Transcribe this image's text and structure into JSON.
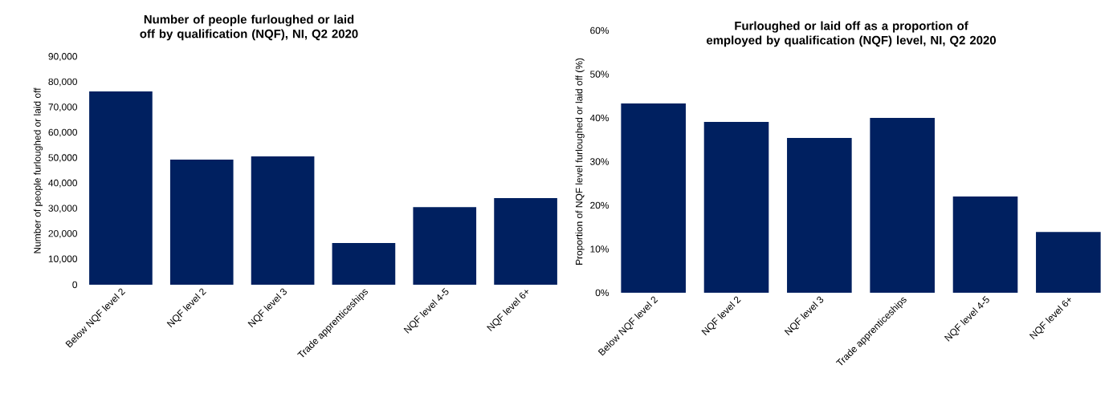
{
  "chart_data": [
    {
      "type": "bar",
      "title": "Number of people furloughed or laid off by qualification (NQF), NI, Q2 2020",
      "ylabel": "Number of people furloughed or laid off",
      "categories": [
        "Below NQF level 2",
        "NQF level 2",
        "NQF level 3",
        "Trade apprenticeships",
        "NQF level 4-5",
        "NQF level 6+"
      ],
      "values": [
        76400,
        49400,
        50700,
        16500,
        30700,
        34200
      ],
      "color": "#002060",
      "ylim": [
        0,
        90000
      ],
      "yticks": [
        0,
        {
          "value": 10000,
          "label": "10,000"
        },
        {
          "value": 20000,
          "label": "20,000"
        },
        {
          "value": 30000,
          "label": "30,000"
        },
        {
          "value": 40000,
          "label": "40,000"
        },
        {
          "value": 50000,
          "label": "50,000"
        },
        {
          "value": 60000,
          "label": "60,000"
        },
        {
          "value": 70000,
          "label": "70,000"
        },
        {
          "value": 80000,
          "label": "80,000"
        },
        {
          "value": 90000,
          "label": "90,000"
        }
      ]
    },
    {
      "type": "bar",
      "title": "Furloughed or laid off as a proportion of employed by qualification (NQF) level, NI, Q2 2020",
      "ylabel": "Proportion of NQF level furloughed or laid off (%)",
      "categories": [
        "Below NQF level 2",
        "NQF level 2",
        "NQF level 3",
        "Trade apprenticeships",
        "NQF level 4-5",
        "NQF level 6+"
      ],
      "values": [
        43.3,
        39.1,
        35.4,
        40.0,
        22.0,
        13.9
      ],
      "color": "#002060",
      "ylim": [
        0,
        60
      ],
      "yticks": [
        {
          "value": 0,
          "label": "0%"
        },
        {
          "value": 10,
          "label": "10%"
        },
        {
          "value": 20,
          "label": "20%"
        },
        {
          "value": 30,
          "label": "30%"
        },
        {
          "value": 40,
          "label": "40%"
        },
        {
          "value": 50,
          "label": "50%"
        },
        {
          "value": 60,
          "label": "60%"
        }
      ]
    }
  ]
}
